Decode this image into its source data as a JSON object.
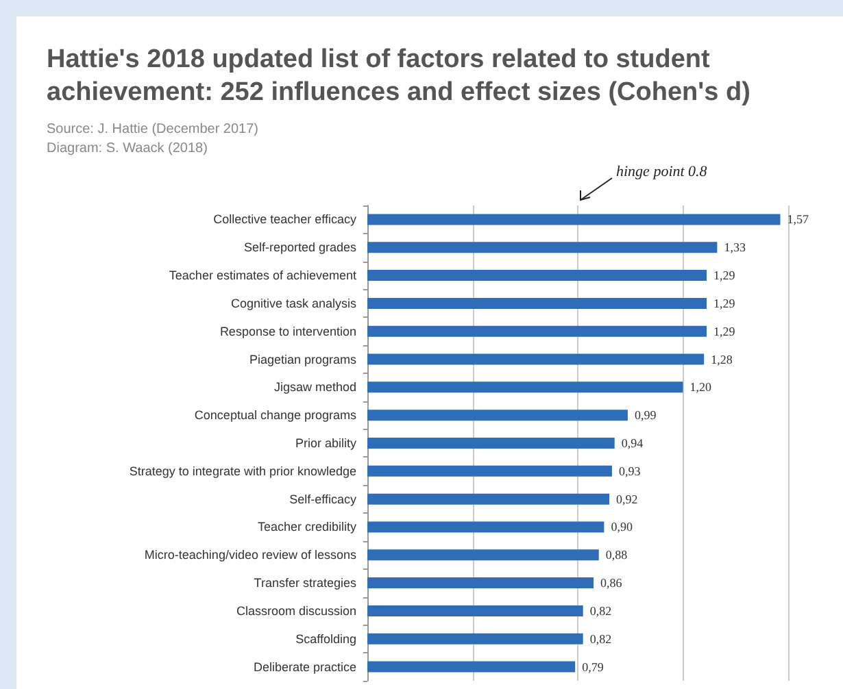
{
  "chart_data": {
    "type": "bar",
    "orientation": "horizontal",
    "title": "Hattie's 2018 updated list of factors related to student achievement: 252 influences and effect sizes (Cohen's d)",
    "annotations": [
      "Source: J. Hattie (December 2017)",
      "Diagram: S. Waack (2018)",
      "hinge point 0.8"
    ],
    "categories": [
      "Collective teacher efficacy",
      "Self-reported grades",
      "Teacher estimates of achievement",
      "Cognitive task analysis",
      "Response to intervention",
      "Piagetian programs",
      "Jigsaw method",
      "Conceptual change programs",
      "Prior ability",
      "Strategy to integrate with prior knowledge",
      "Self-efficacy",
      "Teacher credibility",
      "Micro-teaching/video review of lessons",
      "Transfer strategies",
      "Classroom discussion",
      "Scaffolding",
      "Deliberate practice"
    ],
    "values": [
      1.57,
      1.33,
      1.29,
      1.29,
      1.29,
      1.28,
      1.2,
      0.99,
      0.94,
      0.93,
      0.92,
      0.9,
      0.88,
      0.86,
      0.82,
      0.82,
      0.79
    ],
    "value_labels": [
      "1,57",
      "1,33",
      "1,29",
      "1,29",
      "1,29",
      "1,28",
      "1,20",
      "0,99",
      "0,94",
      "0,93",
      "0,92",
      "0,90",
      "0,88",
      "0,86",
      "0,82",
      "0,82",
      "0,79"
    ],
    "color": "#2e6db8",
    "xlim": [
      0,
      1.6
    ],
    "xticks": [
      {
        "value": 0,
        "label": null
      },
      {
        "value": 0.4,
        "label": null
      },
      {
        "value": 0.8,
        "label": null
      },
      {
        "value": 1.2,
        "label": null
      },
      {
        "value": 1.6,
        "label": null
      }
    ],
    "tick_labels": "y",
    "grid": "x"
  }
}
